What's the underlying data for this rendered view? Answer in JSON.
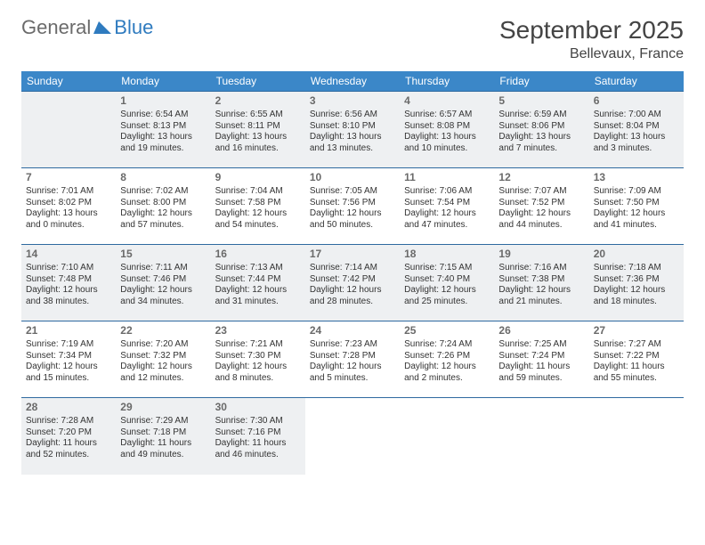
{
  "logo": {
    "part1": "General",
    "part2": "Blue"
  },
  "title": {
    "month": "September 2025",
    "location": "Bellevaux, France"
  },
  "colors": {
    "header_bg": "#3b87c8",
    "header_fg": "#ffffff",
    "shaded_bg": "#eef0f2",
    "border": "#2f6aa0",
    "logo_blue": "#2f7bbf",
    "logo_gray": "#6b6b6b"
  },
  "weekdays": [
    "Sunday",
    "Monday",
    "Tuesday",
    "Wednesday",
    "Thursday",
    "Friday",
    "Saturday"
  ],
  "cells": [
    [
      {
        "shaded": true
      },
      {
        "day": "1",
        "sunrise": "6:54 AM",
        "sunset": "8:13 PM",
        "daylight": "13 hours and 19 minutes.",
        "shaded": true
      },
      {
        "day": "2",
        "sunrise": "6:55 AM",
        "sunset": "8:11 PM",
        "daylight": "13 hours and 16 minutes.",
        "shaded": true
      },
      {
        "day": "3",
        "sunrise": "6:56 AM",
        "sunset": "8:10 PM",
        "daylight": "13 hours and 13 minutes.",
        "shaded": true
      },
      {
        "day": "4",
        "sunrise": "6:57 AM",
        "sunset": "8:08 PM",
        "daylight": "13 hours and 10 minutes.",
        "shaded": true
      },
      {
        "day": "5",
        "sunrise": "6:59 AM",
        "sunset": "8:06 PM",
        "daylight": "13 hours and 7 minutes.",
        "shaded": true
      },
      {
        "day": "6",
        "sunrise": "7:00 AM",
        "sunset": "8:04 PM",
        "daylight": "13 hours and 3 minutes.",
        "shaded": true
      }
    ],
    [
      {
        "day": "7",
        "sunrise": "7:01 AM",
        "sunset": "8:02 PM",
        "daylight": "13 hours and 0 minutes."
      },
      {
        "day": "8",
        "sunrise": "7:02 AM",
        "sunset": "8:00 PM",
        "daylight": "12 hours and 57 minutes."
      },
      {
        "day": "9",
        "sunrise": "7:04 AM",
        "sunset": "7:58 PM",
        "daylight": "12 hours and 54 minutes."
      },
      {
        "day": "10",
        "sunrise": "7:05 AM",
        "sunset": "7:56 PM",
        "daylight": "12 hours and 50 minutes."
      },
      {
        "day": "11",
        "sunrise": "7:06 AM",
        "sunset": "7:54 PM",
        "daylight": "12 hours and 47 minutes."
      },
      {
        "day": "12",
        "sunrise": "7:07 AM",
        "sunset": "7:52 PM",
        "daylight": "12 hours and 44 minutes."
      },
      {
        "day": "13",
        "sunrise": "7:09 AM",
        "sunset": "7:50 PM",
        "daylight": "12 hours and 41 minutes."
      }
    ],
    [
      {
        "day": "14",
        "sunrise": "7:10 AM",
        "sunset": "7:48 PM",
        "daylight": "12 hours and 38 minutes.",
        "shaded": true
      },
      {
        "day": "15",
        "sunrise": "7:11 AM",
        "sunset": "7:46 PM",
        "daylight": "12 hours and 34 minutes.",
        "shaded": true
      },
      {
        "day": "16",
        "sunrise": "7:13 AM",
        "sunset": "7:44 PM",
        "daylight": "12 hours and 31 minutes.",
        "shaded": true
      },
      {
        "day": "17",
        "sunrise": "7:14 AM",
        "sunset": "7:42 PM",
        "daylight": "12 hours and 28 minutes.",
        "shaded": true
      },
      {
        "day": "18",
        "sunrise": "7:15 AM",
        "sunset": "7:40 PM",
        "daylight": "12 hours and 25 minutes.",
        "shaded": true
      },
      {
        "day": "19",
        "sunrise": "7:16 AM",
        "sunset": "7:38 PM",
        "daylight": "12 hours and 21 minutes.",
        "shaded": true
      },
      {
        "day": "20",
        "sunrise": "7:18 AM",
        "sunset": "7:36 PM",
        "daylight": "12 hours and 18 minutes.",
        "shaded": true
      }
    ],
    [
      {
        "day": "21",
        "sunrise": "7:19 AM",
        "sunset": "7:34 PM",
        "daylight": "12 hours and 15 minutes."
      },
      {
        "day": "22",
        "sunrise": "7:20 AM",
        "sunset": "7:32 PM",
        "daylight": "12 hours and 12 minutes."
      },
      {
        "day": "23",
        "sunrise": "7:21 AM",
        "sunset": "7:30 PM",
        "daylight": "12 hours and 8 minutes."
      },
      {
        "day": "24",
        "sunrise": "7:23 AM",
        "sunset": "7:28 PM",
        "daylight": "12 hours and 5 minutes."
      },
      {
        "day": "25",
        "sunrise": "7:24 AM",
        "sunset": "7:26 PM",
        "daylight": "12 hours and 2 minutes."
      },
      {
        "day": "26",
        "sunrise": "7:25 AM",
        "sunset": "7:24 PM",
        "daylight": "11 hours and 59 minutes."
      },
      {
        "day": "27",
        "sunrise": "7:27 AM",
        "sunset": "7:22 PM",
        "daylight": "11 hours and 55 minutes."
      }
    ],
    [
      {
        "day": "28",
        "sunrise": "7:28 AM",
        "sunset": "7:20 PM",
        "daylight": "11 hours and 52 minutes.",
        "shaded": true
      },
      {
        "day": "29",
        "sunrise": "7:29 AM",
        "sunset": "7:18 PM",
        "daylight": "11 hours and 49 minutes.",
        "shaded": true
      },
      {
        "day": "30",
        "sunrise": "7:30 AM",
        "sunset": "7:16 PM",
        "daylight": "11 hours and 46 minutes.",
        "shaded": true
      },
      {},
      {},
      {},
      {}
    ]
  ],
  "labels": {
    "sunrise": "Sunrise:",
    "sunset": "Sunset:",
    "daylight": "Daylight:"
  }
}
